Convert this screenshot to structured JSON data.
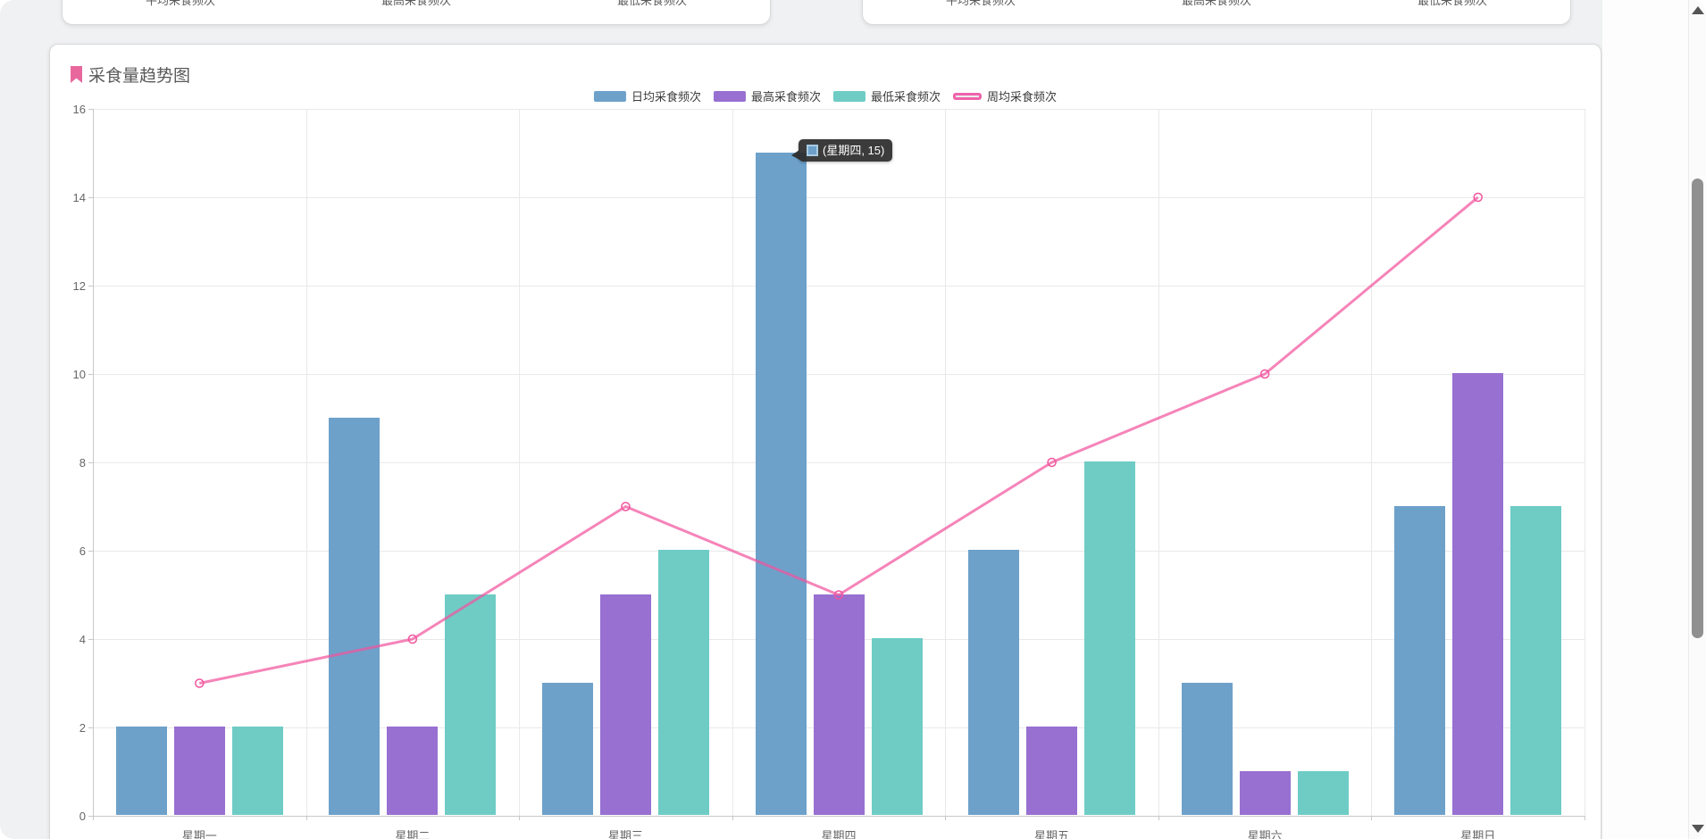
{
  "top_cards": [
    {
      "labels": [
        "平均采食频次",
        "最高采食频次",
        "最低采食频次"
      ]
    },
    {
      "labels": [
        "平均采食频次",
        "最高采食频次",
        "最低采食频次"
      ]
    }
  ],
  "chart_card": {
    "title": "采食量趋势图"
  },
  "icons": {
    "bookmark": "pink bookmark ribbon",
    "scroll_up": "up triangle",
    "scroll_down": "down triangle"
  },
  "colors": {
    "bar_blue": "#6da1ca",
    "bar_purple": "#9770d1",
    "bar_teal": "#6eccc5",
    "line_pink": "#f1559e",
    "legend_line_border": "#ee64ab",
    "bookmark_pink": "#e8689e",
    "tooltip_bg": "rgba(44,44,44,0.93)"
  },
  "tooltip": {
    "text": "(星期四, 15)",
    "swatch_color": "#6da1ca"
  },
  "chart_data": {
    "type": "bar",
    "combo": "grouped bars with line overlay",
    "title": "采食量趋势图",
    "categories": [
      "星期一",
      "星期二",
      "星期三",
      "星期四",
      "星期五",
      "星期六",
      "星期日"
    ],
    "series": [
      {
        "name": "日均采食频次",
        "type": "bar",
        "color": "#6da1ca",
        "values": [
          2,
          9,
          3,
          15,
          6,
          3,
          7
        ]
      },
      {
        "name": "最高采食频次",
        "type": "bar",
        "color": "#9770d1",
        "values": [
          2,
          2,
          5,
          5,
          2,
          1,
          10
        ]
      },
      {
        "name": "最低采食频次",
        "type": "bar",
        "color": "#6eccc5",
        "values": [
          2,
          5,
          6,
          4,
          8,
          1,
          7
        ]
      },
      {
        "name": "周均采食频次",
        "type": "line",
        "color": "#f1559e",
        "values": [
          3,
          4,
          7,
          5,
          8,
          10,
          14
        ]
      }
    ],
    "xlabel": "",
    "ylabel": "",
    "ylim": [
      0,
      16
    ],
    "yticks": [
      0,
      2,
      4,
      6,
      8,
      10,
      12,
      14,
      16
    ],
    "grid": true,
    "legend_position": "top-center",
    "annotation": {
      "text": "(星期四, 15)",
      "target_category": "星期四",
      "target_series": "日均采食频次",
      "target_value": 15
    }
  }
}
